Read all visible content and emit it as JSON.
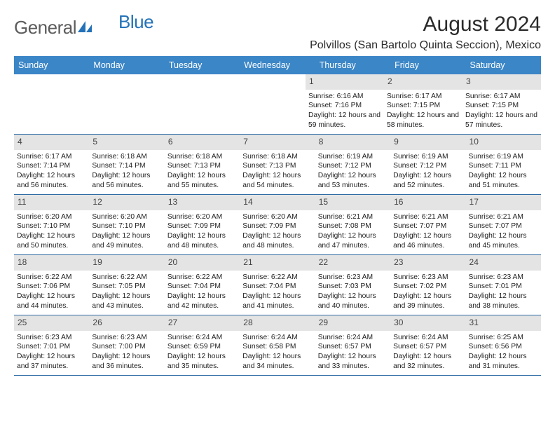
{
  "logo": {
    "text1": "General",
    "text2": "Blue"
  },
  "title": "August 2024",
  "location": "Polvillos (San Bartolo Quinta Seccion), Mexico",
  "colors": {
    "header_bg": "#3b86c6",
    "header_text": "#ffffff",
    "daynum_bg": "#e4e4e4",
    "divider": "#2e6ba3",
    "logo_general": "#5c5c5c",
    "logo_blue": "#2372b9"
  },
  "dow": [
    "Sunday",
    "Monday",
    "Tuesday",
    "Wednesday",
    "Thursday",
    "Friday",
    "Saturday"
  ],
  "weeks": [
    [
      null,
      null,
      null,
      null,
      {
        "n": "1",
        "sr": "6:16 AM",
        "ss": "7:16 PM",
        "dl": "12 hours and 59 minutes."
      },
      {
        "n": "2",
        "sr": "6:17 AM",
        "ss": "7:15 PM",
        "dl": "12 hours and 58 minutes."
      },
      {
        "n": "3",
        "sr": "6:17 AM",
        "ss": "7:15 PM",
        "dl": "12 hours and 57 minutes."
      }
    ],
    [
      {
        "n": "4",
        "sr": "6:17 AM",
        "ss": "7:14 PM",
        "dl": "12 hours and 56 minutes."
      },
      {
        "n": "5",
        "sr": "6:18 AM",
        "ss": "7:14 PM",
        "dl": "12 hours and 56 minutes."
      },
      {
        "n": "6",
        "sr": "6:18 AM",
        "ss": "7:13 PM",
        "dl": "12 hours and 55 minutes."
      },
      {
        "n": "7",
        "sr": "6:18 AM",
        "ss": "7:13 PM",
        "dl": "12 hours and 54 minutes."
      },
      {
        "n": "8",
        "sr": "6:19 AM",
        "ss": "7:12 PM",
        "dl": "12 hours and 53 minutes."
      },
      {
        "n": "9",
        "sr": "6:19 AM",
        "ss": "7:12 PM",
        "dl": "12 hours and 52 minutes."
      },
      {
        "n": "10",
        "sr": "6:19 AM",
        "ss": "7:11 PM",
        "dl": "12 hours and 51 minutes."
      }
    ],
    [
      {
        "n": "11",
        "sr": "6:20 AM",
        "ss": "7:10 PM",
        "dl": "12 hours and 50 minutes."
      },
      {
        "n": "12",
        "sr": "6:20 AM",
        "ss": "7:10 PM",
        "dl": "12 hours and 49 minutes."
      },
      {
        "n": "13",
        "sr": "6:20 AM",
        "ss": "7:09 PM",
        "dl": "12 hours and 48 minutes."
      },
      {
        "n": "14",
        "sr": "6:20 AM",
        "ss": "7:09 PM",
        "dl": "12 hours and 48 minutes."
      },
      {
        "n": "15",
        "sr": "6:21 AM",
        "ss": "7:08 PM",
        "dl": "12 hours and 47 minutes."
      },
      {
        "n": "16",
        "sr": "6:21 AM",
        "ss": "7:07 PM",
        "dl": "12 hours and 46 minutes."
      },
      {
        "n": "17",
        "sr": "6:21 AM",
        "ss": "7:07 PM",
        "dl": "12 hours and 45 minutes."
      }
    ],
    [
      {
        "n": "18",
        "sr": "6:22 AM",
        "ss": "7:06 PM",
        "dl": "12 hours and 44 minutes."
      },
      {
        "n": "19",
        "sr": "6:22 AM",
        "ss": "7:05 PM",
        "dl": "12 hours and 43 minutes."
      },
      {
        "n": "20",
        "sr": "6:22 AM",
        "ss": "7:04 PM",
        "dl": "12 hours and 42 minutes."
      },
      {
        "n": "21",
        "sr": "6:22 AM",
        "ss": "7:04 PM",
        "dl": "12 hours and 41 minutes."
      },
      {
        "n": "22",
        "sr": "6:23 AM",
        "ss": "7:03 PM",
        "dl": "12 hours and 40 minutes."
      },
      {
        "n": "23",
        "sr": "6:23 AM",
        "ss": "7:02 PM",
        "dl": "12 hours and 39 minutes."
      },
      {
        "n": "24",
        "sr": "6:23 AM",
        "ss": "7:01 PM",
        "dl": "12 hours and 38 minutes."
      }
    ],
    [
      {
        "n": "25",
        "sr": "6:23 AM",
        "ss": "7:01 PM",
        "dl": "12 hours and 37 minutes."
      },
      {
        "n": "26",
        "sr": "6:23 AM",
        "ss": "7:00 PM",
        "dl": "12 hours and 36 minutes."
      },
      {
        "n": "27",
        "sr": "6:24 AM",
        "ss": "6:59 PM",
        "dl": "12 hours and 35 minutes."
      },
      {
        "n": "28",
        "sr": "6:24 AM",
        "ss": "6:58 PM",
        "dl": "12 hours and 34 minutes."
      },
      {
        "n": "29",
        "sr": "6:24 AM",
        "ss": "6:57 PM",
        "dl": "12 hours and 33 minutes."
      },
      {
        "n": "30",
        "sr": "6:24 AM",
        "ss": "6:57 PM",
        "dl": "12 hours and 32 minutes."
      },
      {
        "n": "31",
        "sr": "6:25 AM",
        "ss": "6:56 PM",
        "dl": "12 hours and 31 minutes."
      }
    ]
  ],
  "labels": {
    "sunrise": "Sunrise:",
    "sunset": "Sunset:",
    "daylight": "Daylight:"
  }
}
